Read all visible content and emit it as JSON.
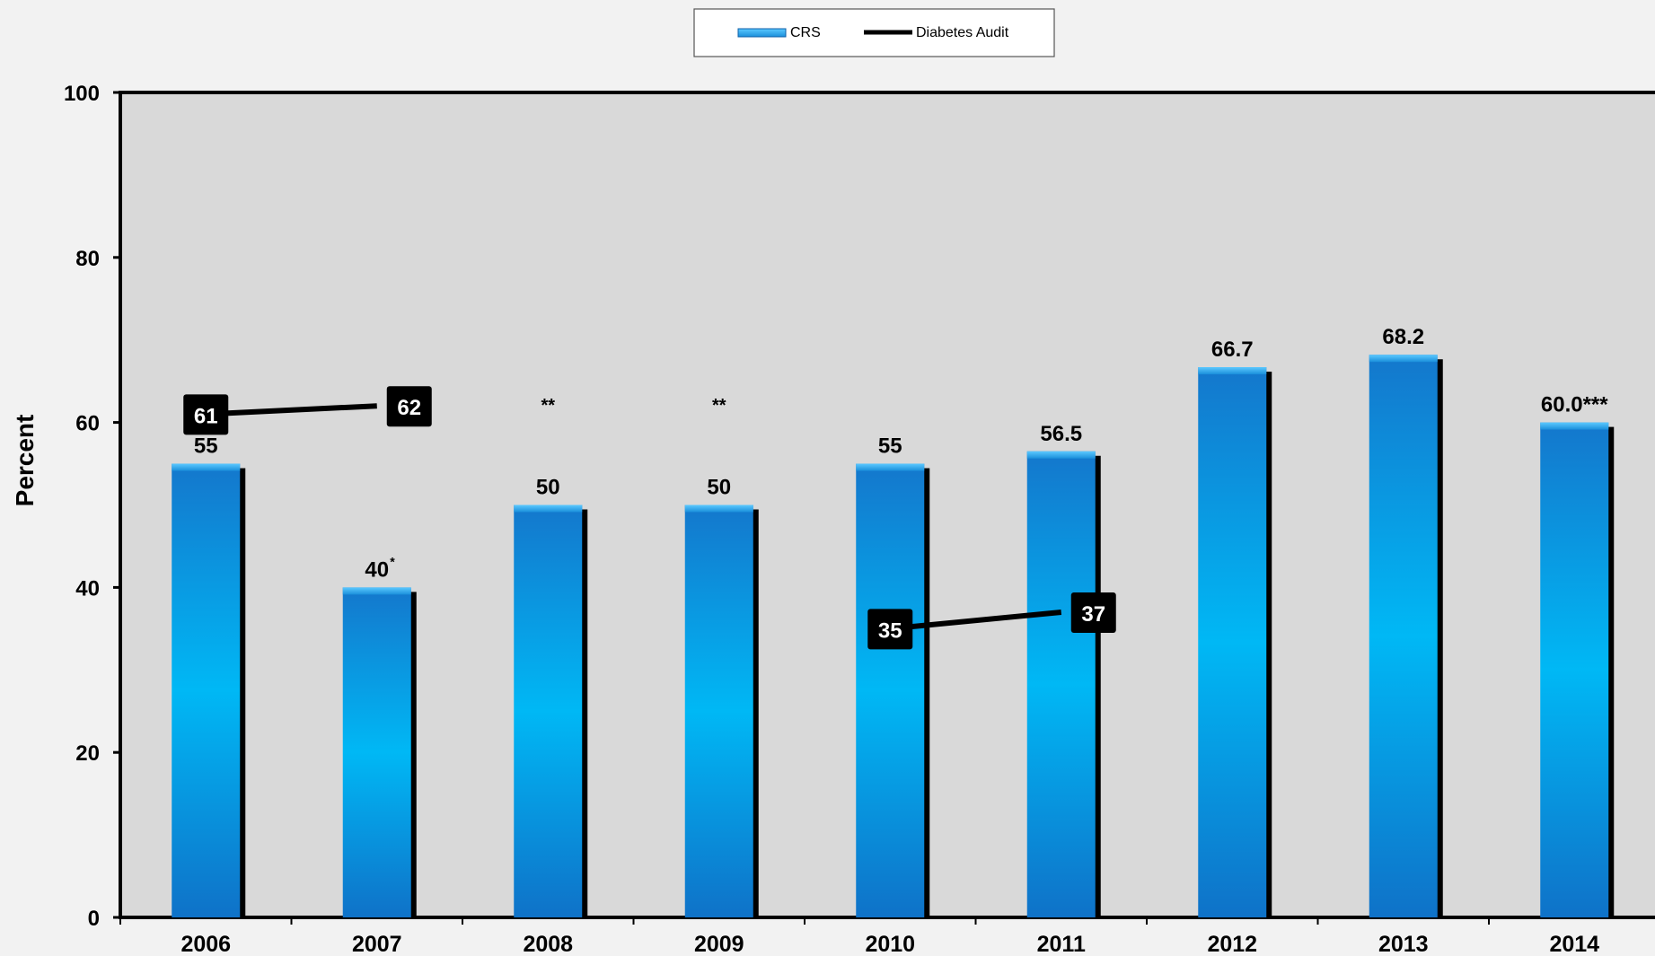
{
  "chart_data": {
    "type": "bar",
    "ylabel": "Percent",
    "ylim": [
      0,
      100
    ],
    "yticks": [
      "0",
      "20",
      "40",
      "60",
      "80",
      "100"
    ],
    "categories": [
      "2006",
      "2007",
      "2008",
      "2009",
      "2010",
      "2011",
      "2012",
      "2013",
      "2014"
    ],
    "legend": {
      "position": "top-center",
      "entries": [
        "CRS",
        "Diabetes Audit"
      ]
    },
    "series": [
      {
        "name": "CRS",
        "kind": "bar",
        "color": "#1a9be6",
        "values": [
          55,
          40,
          50,
          50,
          55,
          56.5,
          66.7,
          68.2,
          60.0
        ],
        "labels": [
          "55",
          "40",
          "50",
          "50",
          "55",
          "56.5",
          "66.7",
          "68.2",
          "60.0***"
        ],
        "footnote_marks": [
          "",
          "*",
          "",
          "",
          "",
          "",
          "",
          "",
          ""
        ]
      },
      {
        "name": "Diabetes Audit",
        "kind": "line",
        "color": "#000000",
        "segments": [
          {
            "categories": [
              "2006",
              "2007"
            ],
            "values": [
              61,
              62
            ],
            "labels": [
              "61",
              "62"
            ]
          },
          {
            "categories": [
              "2010",
              "2011"
            ],
            "values": [
              35,
              37
            ],
            "labels": [
              "35",
              "37"
            ]
          }
        ]
      }
    ],
    "annotations": [
      {
        "category": "2008",
        "text": "**",
        "y": 62
      },
      {
        "category": "2009",
        "text": "**",
        "y": 62
      }
    ]
  }
}
